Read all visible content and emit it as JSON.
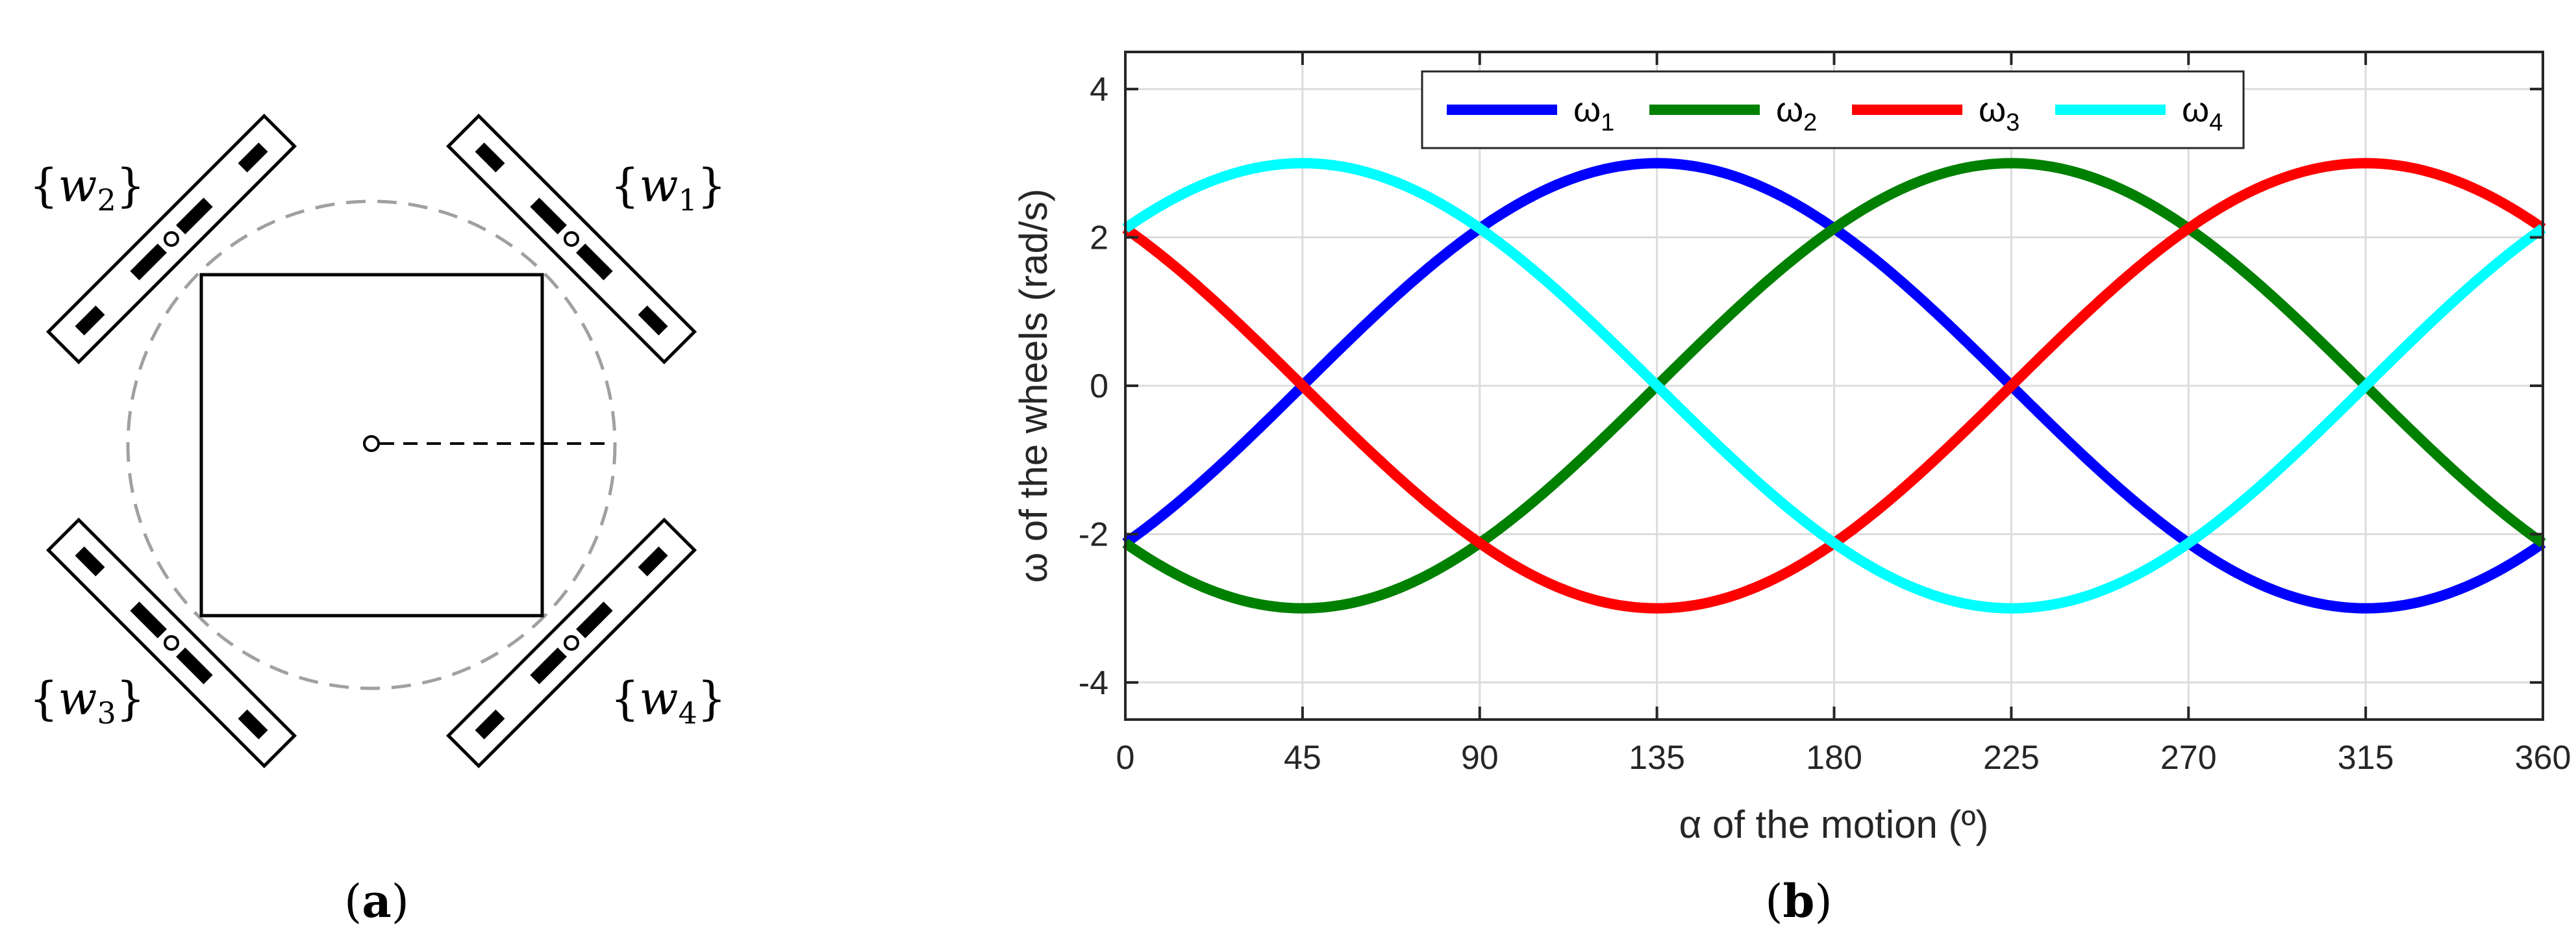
{
  "panel_a": {
    "label": "(a)",
    "label_letter": "a",
    "wheels": [
      {
        "name": "w",
        "sub": "1"
      },
      {
        "name": "w",
        "sub": "2"
      },
      {
        "name": "w",
        "sub": "3"
      },
      {
        "name": "w",
        "sub": "4"
      }
    ]
  },
  "panel_b": {
    "label": "(b)",
    "label_letter": "b"
  },
  "chart_data": {
    "type": "line",
    "xlabel": "α of the motion (º)",
    "ylabel": "ω of the wheels (rad/s)",
    "xlim": [
      0,
      360
    ],
    "ylim": [
      -4.5,
      4.5
    ],
    "xticks": [
      0,
      45,
      90,
      135,
      180,
      225,
      270,
      315,
      360
    ],
    "yticks": [
      -4,
      -2,
      0,
      2,
      4
    ],
    "grid": true,
    "legend_position": "top-center",
    "legend_orientation": "horizontal",
    "amplitude": 3,
    "series": [
      {
        "name": "ω",
        "sub": "1",
        "color": "#0000ff",
        "phase_deg": 45,
        "sign": 1,
        "x": [
          0,
          45,
          90,
          135,
          180,
          225,
          270,
          315,
          360
        ],
        "y": [
          -2.12,
          0,
          2.12,
          3,
          2.12,
          0,
          -2.12,
          -3,
          -2.12
        ]
      },
      {
        "name": "ω",
        "sub": "2",
        "color": "#008000",
        "phase_deg": 135,
        "sign": 1,
        "x": [
          0,
          45,
          90,
          135,
          180,
          225,
          270,
          315,
          360
        ],
        "y": [
          -2.12,
          -3,
          -2.12,
          0,
          2.12,
          3,
          2.12,
          0,
          -2.12
        ]
      },
      {
        "name": "ω",
        "sub": "3",
        "color": "#ff0000",
        "phase_deg": 45,
        "sign": -1,
        "x": [
          0,
          45,
          90,
          135,
          180,
          225,
          270,
          315,
          360
        ],
        "y": [
          2.12,
          0,
          -2.12,
          -3,
          -2.12,
          0,
          2.12,
          3,
          2.12
        ]
      },
      {
        "name": "ω",
        "sub": "4",
        "color": "#00ffff",
        "phase_deg": 135,
        "sign": -1,
        "x": [
          0,
          45,
          90,
          135,
          180,
          225,
          270,
          315,
          360
        ],
        "y": [
          2.12,
          3,
          2.12,
          0,
          -2.12,
          -3,
          -2.12,
          0,
          2.12
        ]
      }
    ]
  }
}
